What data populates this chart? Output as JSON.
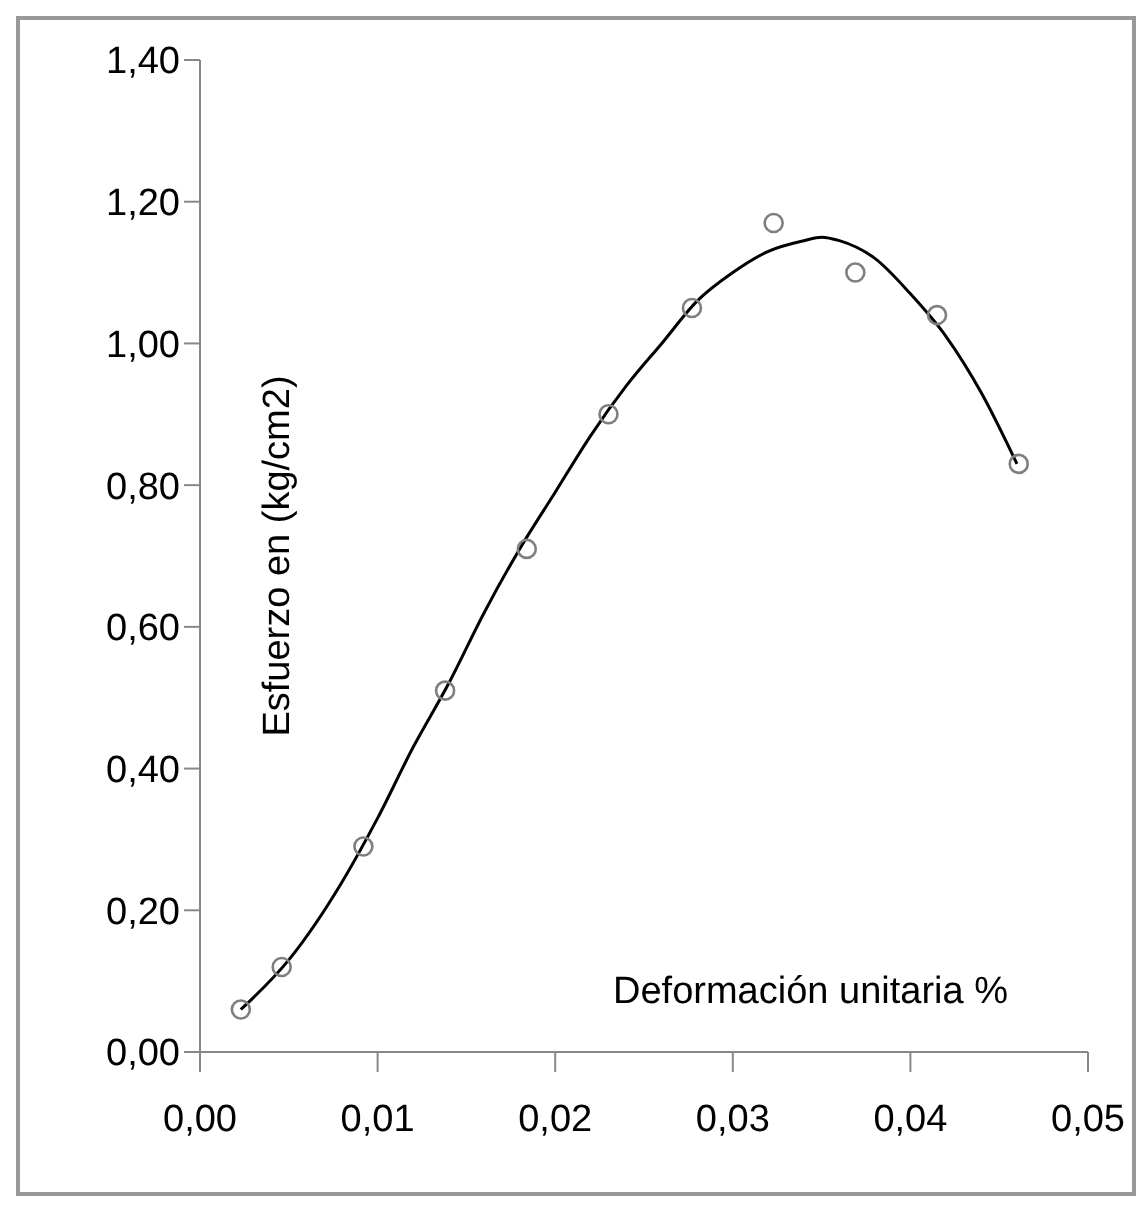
{
  "chart_data": {
    "type": "scatter",
    "xlabel": "Deformación unitaria %",
    "ylabel": "Esfuerzo en (kg/cm2)",
    "xlim": [
      0,
      0.05
    ],
    "ylim": [
      0,
      1.4
    ],
    "xticks": [
      {
        "value": 0,
        "label": "0,00"
      },
      {
        "value": 0.01,
        "label": "0,01"
      },
      {
        "value": 0.02,
        "label": "0,02"
      },
      {
        "value": 0.03,
        "label": "0,03"
      },
      {
        "value": 0.04,
        "label": "0,04"
      },
      {
        "value": 0.05,
        "label": "0,05"
      }
    ],
    "yticks": [
      {
        "value": 0,
        "label": "0,00"
      },
      {
        "value": 0.2,
        "label": "0,20"
      },
      {
        "value": 0.4,
        "label": "0,40"
      },
      {
        "value": 0.6,
        "label": "0,60"
      },
      {
        "value": 0.8,
        "label": "0,80"
      },
      {
        "value": 1.0,
        "label": "1,00"
      },
      {
        "value": 1.2,
        "label": "1,20"
      },
      {
        "value": 1.4,
        "label": "1,40"
      }
    ],
    "grid": false,
    "legend": false,
    "series": [
      {
        "color": "#7f7f7f",
        "marker": "circle",
        "x": [
          0.0023,
          0.0046,
          0.0092,
          0.0138,
          0.0184,
          0.023,
          0.0277,
          0.0323,
          0.0369,
          0.0415,
          0.0461
        ],
        "values": [
          0.06,
          0.12,
          0.29,
          0.51,
          0.71,
          0.9,
          1.05,
          1.17,
          1.1,
          1.04,
          0.83
        ]
      },
      {
        "type": "line",
        "color": "#000000",
        "marker": "none",
        "line_style": "solid",
        "x": [
          0.0023,
          0.005,
          0.008,
          0.01,
          0.012,
          0.014,
          0.016,
          0.018,
          0.02,
          0.022,
          0.024,
          0.026,
          0.028,
          0.03,
          0.032,
          0.034,
          0.035,
          0.036,
          0.038,
          0.04,
          0.042,
          0.044,
          0.046
        ],
        "values": [
          0.06,
          0.13,
          0.24,
          0.33,
          0.43,
          0.52,
          0.62,
          0.71,
          0.79,
          0.87,
          0.94,
          1.0,
          1.06,
          1.1,
          1.13,
          1.145,
          1.15,
          1.145,
          1.12,
          1.07,
          1.01,
          0.93,
          0.83
        ]
      }
    ]
  }
}
